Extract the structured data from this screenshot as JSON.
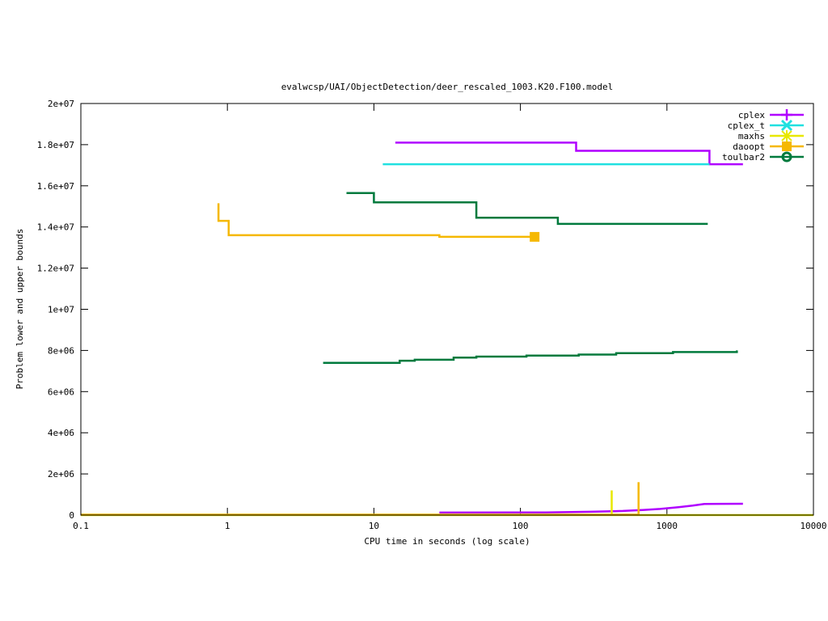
{
  "chart_data": {
    "type": "line",
    "title": "evalwcsp/UAI/ObjectDetection/deer_rescaled_1003.K20.F100.model",
    "xlabel": "CPU time in seconds (log scale)",
    "ylabel": "Problem lower and upper bounds",
    "xscale": "log",
    "xlim": [
      0.1,
      10000
    ],
    "ylim": [
      0,
      20000000
    ],
    "xticks": [
      {
        "v": 0.1,
        "label": "0.1"
      },
      {
        "v": 1,
        "label": "1"
      },
      {
        "v": 10,
        "label": "10"
      },
      {
        "v": 100,
        "label": "100"
      },
      {
        "v": 1000,
        "label": "1000"
      },
      {
        "v": 10000,
        "label": "10000"
      }
    ],
    "yticks": [
      {
        "v": 0,
        "label": "0"
      },
      {
        "v": 2000000,
        "label": "2e+06"
      },
      {
        "v": 4000000,
        "label": "4e+06"
      },
      {
        "v": 6000000,
        "label": "6e+06"
      },
      {
        "v": 8000000,
        "label": "8e+06"
      },
      {
        "v": 10000000,
        "label": "1e+07"
      },
      {
        "v": 12000000,
        "label": "1.2e+07"
      },
      {
        "v": 14000000,
        "label": "1.4e+07"
      },
      {
        "v": 16000000,
        "label": "1.6e+07"
      },
      {
        "v": 18000000,
        "label": "1.8e+07"
      },
      {
        "v": 20000000,
        "label": "2e+07"
      }
    ],
    "grid": false,
    "legend_position": "top-right",
    "series": [
      {
        "name": "cplex",
        "color": "#b000ff",
        "marker": "plus",
        "segments": [
          {
            "step": true,
            "points": [
              [
                14.0,
                18100000
              ],
              [
                240,
                18100000
              ],
              [
                240,
                17700000
              ],
              [
                1950,
                17700000
              ],
              [
                1950,
                17050000
              ],
              [
                3300,
                17050000
              ]
            ]
          },
          {
            "step": false,
            "points": [
              [
                28,
                120000
              ],
              [
                150,
                130000
              ],
              [
                300,
                160000
              ],
              [
                500,
                200000
              ],
              [
                700,
                250000
              ],
              [
                900,
                300000
              ],
              [
                1200,
                380000
              ],
              [
                1500,
                460000
              ],
              [
                1800,
                540000
              ],
              [
                3300,
                550000
              ]
            ]
          }
        ]
      },
      {
        "name": "cplex_t",
        "color": "#20e0e0",
        "marker": "x",
        "segments": [
          {
            "step": true,
            "points": [
              [
                11.5,
                17050000
              ],
              [
                1950,
                17050000
              ]
            ]
          }
        ]
      },
      {
        "name": "maxhs",
        "color": "#e8e800",
        "marker": "star",
        "segments": [
          {
            "step": false,
            "points": [
              [
                420,
                0
              ],
              [
                420,
                1200000
              ]
            ]
          },
          {
            "step": false,
            "points": [
              [
                0.1,
                0
              ],
              [
                10000,
                0
              ]
            ]
          }
        ]
      },
      {
        "name": "daoopt",
        "color": "#f5b800",
        "marker": "square",
        "segments": [
          {
            "step": true,
            "points": [
              [
                0.87,
                15150000
              ],
              [
                0.87,
                14300000
              ],
              [
                1.02,
                14300000
              ],
              [
                1.02,
                13600000
              ],
              [
                28,
                13600000
              ],
              [
                28,
                13520000
              ],
              [
                125,
                13520000
              ]
            ]
          },
          {
            "step": false,
            "points": [
              [
                640,
                0
              ],
              [
                640,
                1600000
              ]
            ]
          },
          {
            "step": false,
            "points": [
              [
                0.1,
                20000
              ],
              [
                640,
                20000
              ]
            ]
          }
        ],
        "end_marker": [
          125,
          13520000
        ]
      },
      {
        "name": "toulbar2",
        "color": "#007a3d",
        "marker": "circle",
        "segments": [
          {
            "step": true,
            "points": [
              [
                6.5,
                15650000
              ],
              [
                10,
                15650000
              ],
              [
                10,
                15200000
              ],
              [
                50,
                15200000
              ],
              [
                50,
                14450000
              ],
              [
                180,
                14450000
              ],
              [
                180,
                14150000
              ],
              [
                1900,
                14150000
              ]
            ]
          },
          {
            "step": true,
            "points": [
              [
                4.5,
                7400000
              ],
              [
                15,
                7400000
              ],
              [
                15,
                7500000
              ],
              [
                19,
                7500000
              ],
              [
                19,
                7550000
              ],
              [
                35,
                7550000
              ],
              [
                35,
                7650000
              ],
              [
                50,
                7650000
              ],
              [
                50,
                7700000
              ],
              [
                110,
                7700000
              ],
              [
                110,
                7750000
              ],
              [
                250,
                7750000
              ],
              [
                250,
                7800000
              ],
              [
                450,
                7800000
              ],
              [
                450,
                7870000
              ],
              [
                1100,
                7870000
              ],
              [
                1100,
                7920000
              ],
              [
                3000,
                7920000
              ],
              [
                3000,
                8000000
              ]
            ]
          }
        ]
      }
    ]
  }
}
